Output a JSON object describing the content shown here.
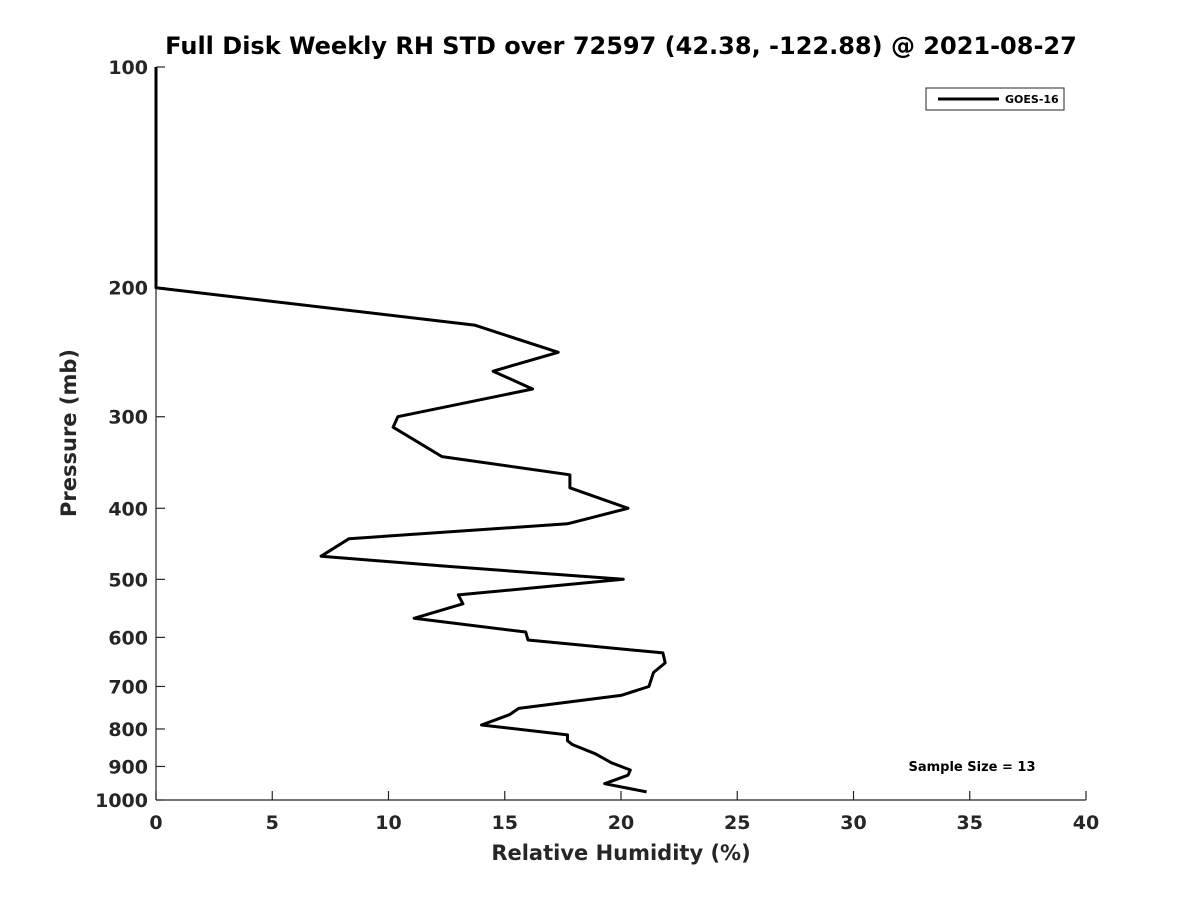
{
  "chart_data": {
    "type": "line",
    "title": "Full Disk Weekly RH STD over 72597 (42.38, -122.88) @ 2021-08-27",
    "xlabel": "Relative Humidity (%)",
    "ylabel": "Pressure (mb)",
    "xlim": [
      0,
      40
    ],
    "ylim": [
      1000,
      100
    ],
    "yscale": "log",
    "grid": false,
    "legend_position": "top-right",
    "x_ticks": [
      0,
      5,
      10,
      15,
      20,
      25,
      30,
      35,
      40
    ],
    "x_tick_labels": [
      "0",
      "5",
      "10",
      "15",
      "20",
      "25",
      "30",
      "35",
      "40"
    ],
    "y_ticks": [
      100,
      200,
      300,
      400,
      500,
      600,
      700,
      800,
      900,
      1000
    ],
    "y_tick_labels": [
      "100",
      "200",
      "300",
      "400",
      "500",
      "600",
      "700",
      "800",
      "900",
      "1000"
    ],
    "annotation": "Sample Size = 13",
    "series": [
      {
        "name": "GOES-16",
        "color": "#000000",
        "points": [
          [
            0,
            100
          ],
          [
            0,
            150
          ],
          [
            0,
            200
          ],
          [
            13.7,
            225
          ],
          [
            17.3,
            245
          ],
          [
            14.5,
            260
          ],
          [
            16.2,
            275
          ],
          [
            10.4,
            300
          ],
          [
            10.2,
            310
          ],
          [
            12.3,
            340
          ],
          [
            17.8,
            360
          ],
          [
            17.8,
            375
          ],
          [
            20.3,
            400
          ],
          [
            17.7,
            420
          ],
          [
            8.3,
            440
          ],
          [
            7.1,
            465
          ],
          [
            12.5,
            480
          ],
          [
            20.1,
            500
          ],
          [
            13.0,
            525
          ],
          [
            13.2,
            540
          ],
          [
            11.1,
            565
          ],
          [
            15.9,
            590
          ],
          [
            16.0,
            605
          ],
          [
            21.8,
            630
          ],
          [
            21.9,
            650
          ],
          [
            21.4,
            670
          ],
          [
            21.2,
            700
          ],
          [
            20.0,
            720
          ],
          [
            15.6,
            750
          ],
          [
            15.2,
            765
          ],
          [
            14.0,
            790
          ],
          [
            17.7,
            815
          ],
          [
            17.7,
            830
          ],
          [
            17.9,
            840
          ],
          [
            18.9,
            865
          ],
          [
            19.6,
            890
          ],
          [
            20.4,
            910
          ],
          [
            20.3,
            925
          ],
          [
            19.3,
            950
          ],
          [
            21.1,
            975
          ]
        ]
      }
    ]
  }
}
